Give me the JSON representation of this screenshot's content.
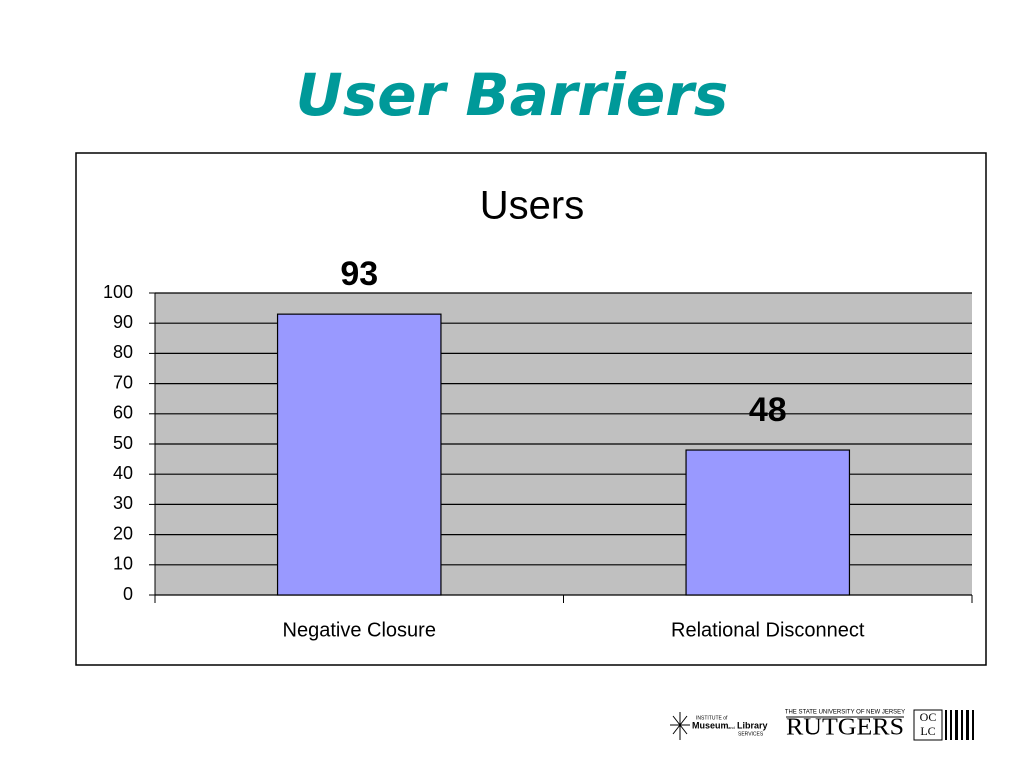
{
  "slide_title": "User Barriers",
  "chart_data": {
    "type": "bar",
    "title": "Users",
    "categories": [
      "Negative Closure",
      "Relational Disconnect"
    ],
    "values": [
      93,
      48
    ],
    "color": "#9999ff",
    "plot_background": "#c0c0c0",
    "ylim": [
      0,
      100
    ],
    "yticks": [
      0,
      10,
      20,
      30,
      40,
      50,
      60,
      70,
      80,
      90,
      100
    ],
    "grid": true
  },
  "logos": {
    "imls": [
      "INSTITUTE of",
      "Museum",
      "and",
      "Library",
      "SERVICES"
    ],
    "rutgers_top": "THE STATE UNIVERSITY OF NEW JERSEY",
    "rutgers": "RUTGERS",
    "oclc": [
      "OC",
      "LC"
    ]
  }
}
